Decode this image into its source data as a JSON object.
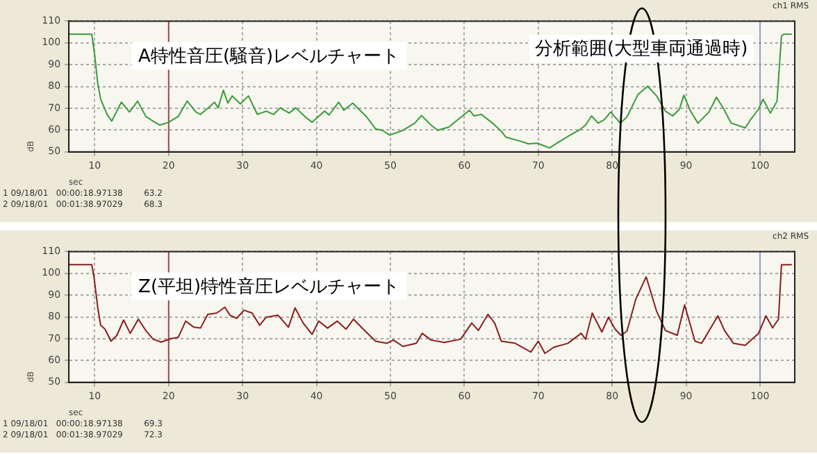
{
  "chart_data": [
    {
      "type": "line",
      "title": "A特性音圧(騒音)レベルチャート",
      "subtitle": "ch1 RMS",
      "xlabel": "sec",
      "ylabel": "dB",
      "xlim": [
        6.5,
        104.7
      ],
      "ylim": [
        50,
        110
      ],
      "xticks": [
        10,
        20,
        30,
        40,
        50,
        60,
        70,
        80,
        90,
        100
      ],
      "yticks": [
        50,
        60,
        70,
        80,
        90,
        100,
        110
      ],
      "grid": true,
      "marker": "none",
      "legend": false,
      "series": [
        {
          "color": "#3a9a3a",
          "x": [
            6.5,
            9.6,
            10,
            10.4,
            10.8,
            11.7,
            12.3,
            13.6,
            14.7,
            15.8,
            16.9,
            17.7,
            18.8,
            20,
            21.3,
            22.5,
            23.7,
            24.3,
            25.6,
            26.2,
            26.7,
            27.4,
            28,
            28.6,
            29.7,
            30.8,
            32,
            33.2,
            34.2,
            35.1,
            36.3,
            37.2,
            38.5,
            39.4,
            41.1,
            41.7,
            43,
            43.7,
            44.9,
            46.8,
            48,
            48.9,
            49.9,
            51.7,
            53.3,
            54.2,
            55.5,
            56.4,
            57.9,
            60.7,
            61.3,
            62.3,
            63.8,
            65,
            65.6,
            67.5,
            68.7,
            69.9,
            71.5,
            73,
            74.3,
            75.5,
            76.4,
            77.2,
            78.1,
            78.9,
            79.8,
            81.1,
            82,
            83.5,
            84.8,
            86,
            87.2,
            88.2,
            89.1,
            89.7,
            90.6,
            91.6,
            93.1,
            94.1,
            95.1,
            96.1,
            98,
            98.6,
            99.8,
            100.4,
            101.4,
            102.3,
            102.9,
            103.2,
            104.3
          ],
          "values": [
            104,
            104,
            94.4,
            81.6,
            74.2,
            67,
            64.1,
            72.8,
            68.3,
            73.3,
            66.3,
            64.5,
            62.3,
            63.6,
            66.3,
            73.3,
            68.3,
            67.2,
            70.9,
            72.8,
            70.2,
            78.3,
            72.4,
            75.7,
            72,
            75.7,
            67.2,
            68.7,
            67.2,
            70.2,
            67.8,
            70.2,
            66,
            63.6,
            68.7,
            66.9,
            72.8,
            69.1,
            72.4,
            66,
            60.5,
            59.9,
            57.7,
            59.9,
            63.2,
            66.7,
            62.3,
            59.9,
            61.4,
            69.1,
            66.5,
            67.2,
            63.2,
            59.5,
            56.8,
            55,
            53.7,
            54,
            51.8,
            55,
            57.7,
            59.9,
            62.3,
            66.5,
            63.2,
            64.7,
            68.3,
            63.2,
            66,
            76.4,
            80.1,
            75.7,
            68.7,
            66.5,
            69.6,
            76,
            68.7,
            63.2,
            68.3,
            75.1,
            69.6,
            63.2,
            61,
            64.2,
            69.6,
            74.2,
            67.8,
            73.3,
            103.2,
            104,
            104
          ]
        }
      ],
      "ref_lines": [
        {
          "axis": "x",
          "value": 20,
          "color": "#a04848"
        },
        {
          "axis": "x",
          "value": 100,
          "color": "#9a9ad0"
        }
      ],
      "annotations": [
        "分析範囲(大型車両通過時)",
        "1 09/18/01   00:00:18.97138        63.2",
        "2 09/18/01   00:01:38.97029        68.3"
      ]
    },
    {
      "type": "line",
      "title": "Z(平坦)特性音圧レベルチャート",
      "subtitle": "ch2 RMS",
      "xlabel": "sec",
      "ylabel": "dB",
      "xlim": [
        6.5,
        104.7
      ],
      "ylim": [
        50,
        110
      ],
      "xticks": [
        10,
        20,
        30,
        40,
        50,
        60,
        70,
        80,
        90,
        100
      ],
      "yticks": [
        50,
        60,
        70,
        80,
        90,
        100,
        110
      ],
      "grid": true,
      "marker": "none",
      "legend": false,
      "series": [
        {
          "color": "#8b1c1c",
          "x": [
            6.5,
            9.6,
            9.9,
            10.4,
            10.8,
            11.4,
            12.2,
            13,
            13.9,
            14.8,
            15.9,
            16.9,
            17.9,
            19,
            20.3,
            21.3,
            22.3,
            23.4,
            24.3,
            25.3,
            26.5,
            27.6,
            28.3,
            29.2,
            30.2,
            31.3,
            32.3,
            33.2,
            34.8,
            36.2,
            37.1,
            38.2,
            39.4,
            40.3,
            41.5,
            42.8,
            44,
            45,
            46.5,
            48,
            49.5,
            50.4,
            51.7,
            53.5,
            54.3,
            55.5,
            57.3,
            59.5,
            61,
            61.9,
            63.2,
            64.1,
            65,
            66.9,
            69,
            70,
            70.9,
            72.1,
            74,
            75.8,
            76.4,
            77.3,
            78.6,
            79.5,
            80.4,
            81.2,
            82,
            83.2,
            84.6,
            86,
            87.2,
            88.8,
            89.8,
            91.2,
            92.1,
            94.3,
            95.2,
            96.4,
            98,
            99.8,
            100.8,
            101.7,
            102.5,
            102.9,
            104.3
          ],
          "values": [
            104,
            104,
            98.4,
            84.5,
            76.2,
            74.4,
            68.9,
            71.6,
            78.6,
            72.5,
            79,
            73.8,
            69.8,
            68.5,
            70.1,
            70.7,
            78.1,
            75.3,
            74.9,
            81.2,
            81.8,
            84.5,
            80.8,
            79.4,
            83.1,
            81.8,
            76.2,
            79.9,
            80.8,
            75.3,
            84.2,
            77.2,
            72,
            78.1,
            74.9,
            78.1,
            74.4,
            79,
            73.8,
            68.9,
            67.9,
            69.4,
            66.5,
            67.9,
            72.5,
            69.4,
            68.3,
            69.8,
            77.2,
            73.8,
            81.2,
            77.2,
            68.9,
            67.9,
            63.9,
            68.9,
            63.3,
            66.1,
            67.9,
            72.5,
            69.8,
            81.8,
            73.1,
            79.9,
            74.4,
            71.6,
            73.5,
            88.2,
            98.4,
            82.7,
            73.8,
            71.6,
            85.5,
            68.9,
            67.9,
            80.5,
            73.8,
            67.9,
            67,
            72.5,
            80.5,
            75,
            79,
            103.9,
            104
          ]
        }
      ],
      "ref_lines": [
        {
          "axis": "x",
          "value": 20,
          "color": "#a04848"
        },
        {
          "axis": "x",
          "value": 100,
          "color": "#9a9ad0"
        }
      ],
      "annotations": [
        "1 09/18/01   00:00:18.97138        69.3",
        "2 09/18/01   00:01:38.97029        72.3"
      ]
    }
  ]
}
